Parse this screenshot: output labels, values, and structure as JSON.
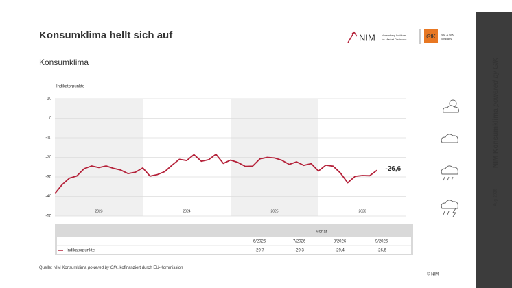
{
  "title": "Konsumklima hellt sich auf",
  "logo": {
    "nim": "NIM",
    "nim_sub": [
      "Nuremberg Institute",
      "for Market Decisions"
    ],
    "gfk": "GfK",
    "gfk_sub": [
      "NIM & GfK",
      "company"
    ]
  },
  "sidebar": {
    "title": "NIM Konsumklima",
    "title_italic": "powered by GfK",
    "date": "Aug 2026"
  },
  "source": [
    "Quelle: NIM Konsumklima ",
    "powered by GfK",
    ", kofinanziert durch EU-Kommission"
  ],
  "copyright": "© NIM",
  "chart_data": {
    "type": "line",
    "title": "Konsumklima",
    "y_label": "Indikatorpunkte",
    "x": [
      2023,
      2023.083,
      2023.167,
      2023.25,
      2023.333,
      2023.417,
      2023.5,
      2023.583,
      2023.667,
      2023.75,
      2023.833,
      2023.917,
      2024,
      2024.083,
      2024.167,
      2024.25,
      2024.333,
      2024.417,
      2024.5,
      2024.583,
      2024.667,
      2024.75,
      2024.833,
      2024.917,
      2025,
      2025.083,
      2025.167,
      2025.25,
      2025.333,
      2025.417,
      2025.5,
      2025.583,
      2025.667,
      2025.75,
      2025.833,
      2025.917,
      2026,
      2026.083,
      2026.167,
      2026.25,
      2026.333,
      2026.417,
      2026.5,
      2026.583,
      2026.667
    ],
    "series": [
      {
        "name": "Indikatorpunkte",
        "color": "#b5223a",
        "values": [
          -38.5,
          -33.9,
          -30.6,
          -29.5,
          -25.8,
          -24.4,
          -25.2,
          -24.4,
          -25.6,
          -26.5,
          -28.3,
          -27.6,
          -25.4,
          -29.6,
          -28.8,
          -27.3,
          -24.0,
          -21.0,
          -21.6,
          -18.6,
          -22.0,
          -21.2,
          -18.4,
          -23.1,
          -21.4,
          -22.6,
          -24.6,
          -24.5,
          -20.8,
          -20.0,
          -20.3,
          -21.5,
          -23.6,
          -22.3,
          -24.1,
          -23.2,
          -27.0,
          -24.0,
          -24.5,
          -28.0,
          -33.0,
          -29.7,
          -29.3,
          -29.4,
          -26.6
        ]
      }
    ],
    "end_label": "-26,6",
    "xlim": [
      2023,
      2027
    ],
    "xticks": [
      {
        "value": 2023.5,
        "label": "2023"
      },
      {
        "value": 2024.5,
        "label": "2024"
      },
      {
        "value": 2025.5,
        "label": "2025"
      },
      {
        "value": 2026.5,
        "label": "2026"
      }
    ],
    "ylim": [
      -50,
      10
    ],
    "yticks": [
      10,
      0,
      -10,
      -20,
      -30,
      -40,
      -50
    ],
    "grid": true,
    "alternate_shading": true,
    "table": {
      "header": "Monat",
      "columns": [
        "6/2026",
        "7/2026",
        "8/2026",
        "9/2026"
      ],
      "cells": [
        "-29,7",
        "-29,3",
        "-29,4",
        "-26,6"
      ]
    }
  }
}
